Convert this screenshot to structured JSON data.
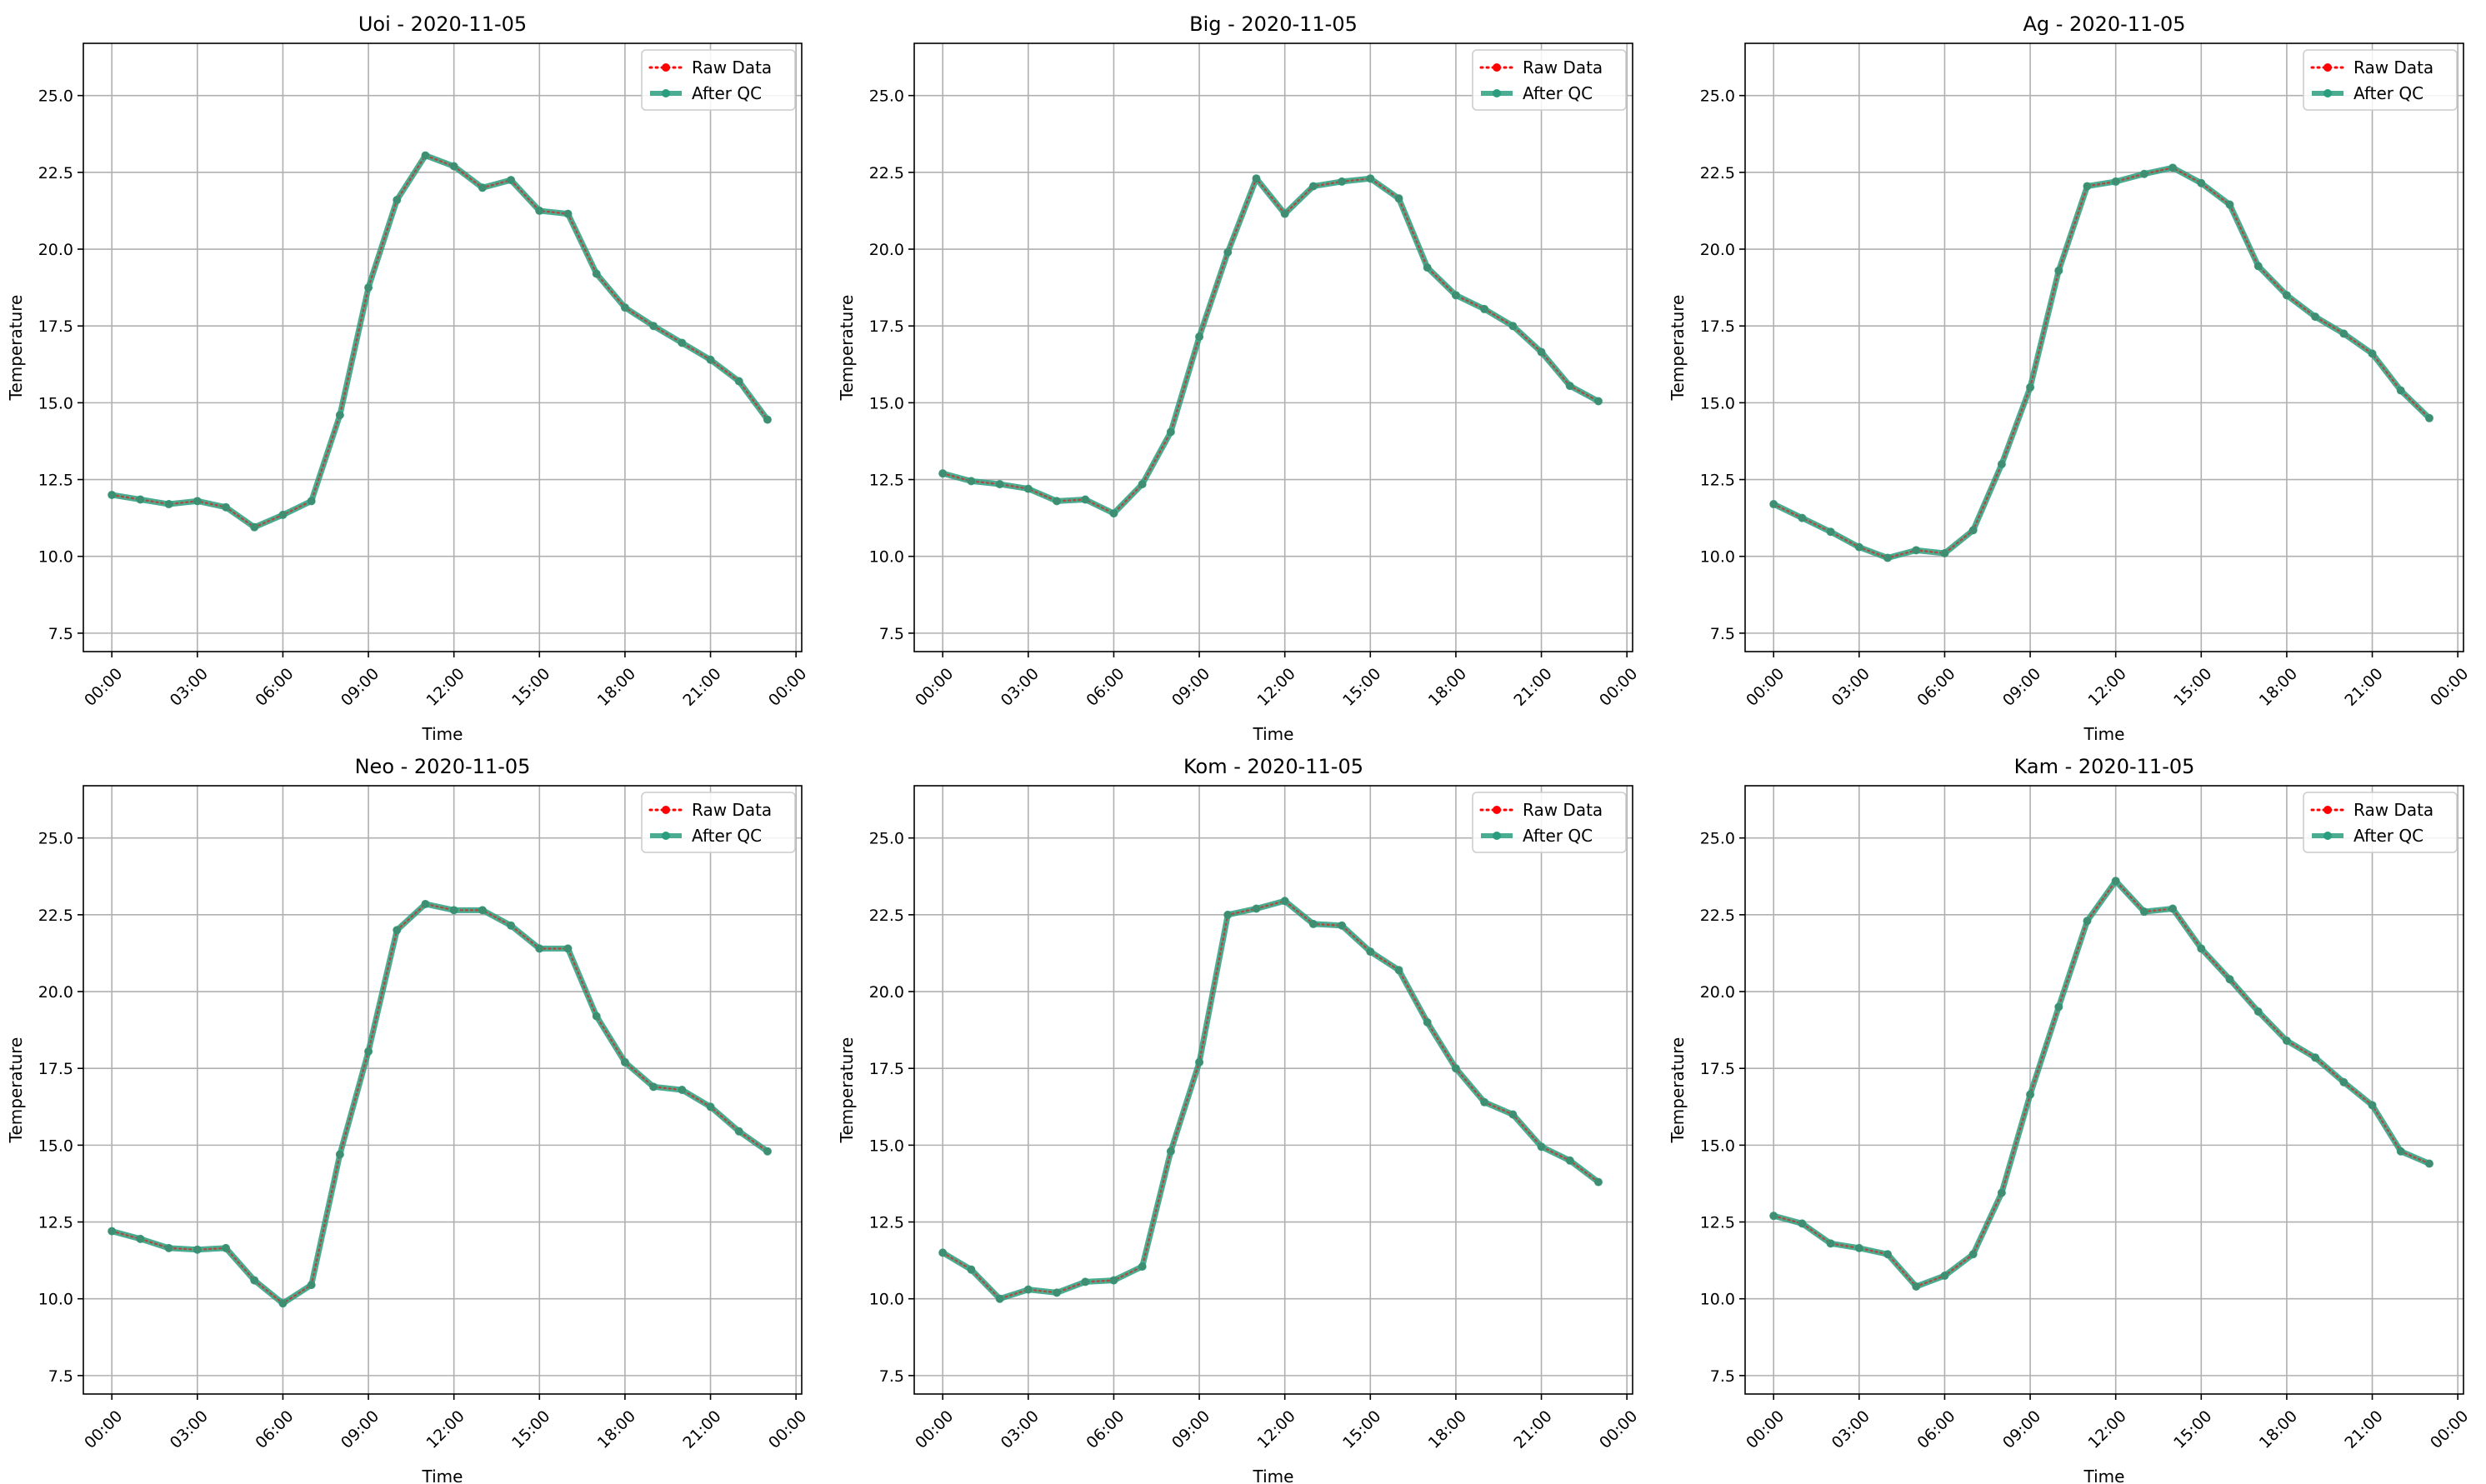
{
  "figure": {
    "background": "#ffffff",
    "grid_color": "#b0b0b0",
    "raw_color": "#ff0000",
    "qc_color": "#2a9d7e"
  },
  "chart_data": [
    {
      "type": "line",
      "title": "Uoi - 2020-11-05",
      "xlabel": "Time",
      "ylabel": "Temperature",
      "ylim": [
        6.9,
        26.7
      ],
      "yticks": [
        "7.5",
        "10.0",
        "12.5",
        "15.0",
        "17.5",
        "20.0",
        "22.5",
        "25.0"
      ],
      "xticks": [
        "00:00",
        "03:00",
        "06:00",
        "09:00",
        "12:00",
        "15:00",
        "18:00",
        "21:00",
        "00:00"
      ],
      "xlim_hours": [
        -1.0,
        24.2
      ],
      "grid": true,
      "legend_position": "top-right",
      "x": [
        "00:00",
        "01:00",
        "02:00",
        "03:00",
        "04:00",
        "05:00",
        "06:00",
        "07:00",
        "08:00",
        "09:00",
        "10:00",
        "11:00",
        "12:00",
        "13:00",
        "14:00",
        "15:00",
        "16:00",
        "17:00",
        "18:00",
        "19:00",
        "20:00",
        "21:00",
        "22:00",
        "23:00"
      ],
      "series": [
        {
          "name": "Raw Data",
          "values": [
            12.0,
            11.85,
            11.7,
            11.8,
            11.6,
            10.95,
            11.35,
            11.8,
            14.6,
            18.75,
            21.6,
            23.05,
            22.7,
            22.0,
            22.25,
            21.25,
            21.15,
            19.2,
            18.1,
            17.5,
            16.95,
            16.4,
            15.7,
            14.45
          ]
        },
        {
          "name": "After QC",
          "values": [
            12.0,
            11.85,
            11.7,
            11.8,
            11.6,
            10.95,
            11.35,
            11.8,
            14.6,
            18.75,
            21.6,
            23.05,
            22.7,
            22.0,
            22.25,
            21.25,
            21.15,
            19.2,
            18.1,
            17.5,
            16.95,
            16.4,
            15.7,
            14.45
          ]
        }
      ]
    },
    {
      "type": "line",
      "title": "Big - 2020-11-05",
      "xlabel": "Time",
      "ylabel": "Temperature",
      "ylim": [
        6.9,
        26.7
      ],
      "yticks": [
        "7.5",
        "10.0",
        "12.5",
        "15.0",
        "17.5",
        "20.0",
        "22.5",
        "25.0"
      ],
      "xticks": [
        "00:00",
        "03:00",
        "06:00",
        "09:00",
        "12:00",
        "15:00",
        "18:00",
        "21:00",
        "00:00"
      ],
      "xlim_hours": [
        -1.0,
        24.2
      ],
      "grid": true,
      "legend_position": "top-right",
      "x": [
        "00:00",
        "01:00",
        "02:00",
        "03:00",
        "04:00",
        "05:00",
        "06:00",
        "07:00",
        "08:00",
        "09:00",
        "10:00",
        "11:00",
        "12:00",
        "13:00",
        "14:00",
        "15:00",
        "16:00",
        "17:00",
        "18:00",
        "19:00",
        "20:00",
        "21:00",
        "22:00",
        "23:00"
      ],
      "series": [
        {
          "name": "Raw Data",
          "values": [
            12.7,
            12.45,
            12.35,
            12.2,
            11.8,
            11.85,
            11.4,
            12.35,
            14.05,
            17.15,
            19.9,
            22.3,
            21.15,
            22.05,
            22.2,
            22.3,
            21.65,
            19.4,
            18.5,
            18.05,
            17.5,
            16.65,
            15.55,
            15.05
          ]
        },
        {
          "name": "After QC",
          "values": [
            12.7,
            12.45,
            12.35,
            12.2,
            11.8,
            11.85,
            11.4,
            12.35,
            14.05,
            17.15,
            19.9,
            22.3,
            21.15,
            22.05,
            22.2,
            22.3,
            21.65,
            19.4,
            18.5,
            18.05,
            17.5,
            16.65,
            15.55,
            15.05
          ]
        }
      ]
    },
    {
      "type": "line",
      "title": "Ag - 2020-11-05",
      "xlabel": "Time",
      "ylabel": "Temperature",
      "ylim": [
        6.9,
        26.7
      ],
      "yticks": [
        "7.5",
        "10.0",
        "12.5",
        "15.0",
        "17.5",
        "20.0",
        "22.5",
        "25.0"
      ],
      "xticks": [
        "00:00",
        "03:00",
        "06:00",
        "09:00",
        "12:00",
        "15:00",
        "18:00",
        "21:00",
        "00:00"
      ],
      "xlim_hours": [
        -1.0,
        24.2
      ],
      "grid": true,
      "legend_position": "top-right",
      "x": [
        "00:00",
        "01:00",
        "02:00",
        "03:00",
        "04:00",
        "05:00",
        "06:00",
        "07:00",
        "08:00",
        "09:00",
        "10:00",
        "11:00",
        "12:00",
        "13:00",
        "14:00",
        "15:00",
        "16:00",
        "17:00",
        "18:00",
        "19:00",
        "20:00",
        "21:00",
        "22:00",
        "23:00"
      ],
      "series": [
        {
          "name": "Raw Data",
          "values": [
            11.7,
            11.25,
            10.8,
            10.3,
            9.95,
            10.2,
            10.1,
            10.85,
            13.0,
            15.5,
            19.3,
            22.05,
            22.2,
            22.45,
            22.65,
            22.15,
            21.45,
            19.45,
            18.5,
            17.8,
            17.25,
            16.6,
            15.4,
            14.5
          ]
        },
        {
          "name": "After QC",
          "values": [
            11.7,
            11.25,
            10.8,
            10.3,
            9.95,
            10.2,
            10.1,
            10.85,
            13.0,
            15.5,
            19.3,
            22.05,
            22.2,
            22.45,
            22.65,
            22.15,
            21.45,
            19.45,
            18.5,
            17.8,
            17.25,
            16.6,
            15.4,
            14.5
          ]
        }
      ]
    },
    {
      "type": "line",
      "title": "Neo - 2020-11-05",
      "xlabel": "Time",
      "ylabel": "Temperature",
      "ylim": [
        6.9,
        26.7
      ],
      "yticks": [
        "7.5",
        "10.0",
        "12.5",
        "15.0",
        "17.5",
        "20.0",
        "22.5",
        "25.0"
      ],
      "xticks": [
        "00:00",
        "03:00",
        "06:00",
        "09:00",
        "12:00",
        "15:00",
        "18:00",
        "21:00",
        "00:00"
      ],
      "xlim_hours": [
        -1.0,
        24.2
      ],
      "grid": true,
      "legend_position": "top-right",
      "x": [
        "00:00",
        "01:00",
        "02:00",
        "03:00",
        "04:00",
        "05:00",
        "06:00",
        "07:00",
        "08:00",
        "09:00",
        "10:00",
        "11:00",
        "12:00",
        "13:00",
        "14:00",
        "15:00",
        "16:00",
        "17:00",
        "18:00",
        "19:00",
        "20:00",
        "21:00",
        "22:00",
        "23:00"
      ],
      "series": [
        {
          "name": "Raw Data",
          "values": [
            12.2,
            11.95,
            11.65,
            11.6,
            11.65,
            10.6,
            9.85,
            10.45,
            14.7,
            18.05,
            22.0,
            22.85,
            22.65,
            22.65,
            22.15,
            21.4,
            21.4,
            19.2,
            17.7,
            16.9,
            16.8,
            16.25,
            15.45,
            14.8
          ]
        },
        {
          "name": "After QC",
          "values": [
            12.2,
            11.95,
            11.65,
            11.6,
            11.65,
            10.6,
            9.85,
            10.45,
            14.7,
            18.05,
            22.0,
            22.85,
            22.65,
            22.65,
            22.15,
            21.4,
            21.4,
            19.2,
            17.7,
            16.9,
            16.8,
            16.25,
            15.45,
            14.8
          ]
        }
      ]
    },
    {
      "type": "line",
      "title": "Kom - 2020-11-05",
      "xlabel": "Time",
      "ylabel": "Temperature",
      "ylim": [
        6.9,
        26.7
      ],
      "yticks": [
        "7.5",
        "10.0",
        "12.5",
        "15.0",
        "17.5",
        "20.0",
        "22.5",
        "25.0"
      ],
      "xticks": [
        "00:00",
        "03:00",
        "06:00",
        "09:00",
        "12:00",
        "15:00",
        "18:00",
        "21:00",
        "00:00"
      ],
      "xlim_hours": [
        -1.0,
        24.2
      ],
      "grid": true,
      "legend_position": "top-right",
      "x": [
        "00:00",
        "01:00",
        "02:00",
        "03:00",
        "04:00",
        "05:00",
        "06:00",
        "07:00",
        "08:00",
        "09:00",
        "10:00",
        "11:00",
        "12:00",
        "13:00",
        "14:00",
        "15:00",
        "16:00",
        "17:00",
        "18:00",
        "19:00",
        "20:00",
        "21:00",
        "22:00",
        "23:00"
      ],
      "series": [
        {
          "name": "Raw Data",
          "values": [
            11.5,
            10.95,
            10.0,
            10.3,
            10.2,
            10.55,
            10.6,
            11.05,
            14.8,
            17.7,
            22.5,
            22.7,
            22.95,
            22.2,
            22.15,
            21.3,
            20.7,
            19.0,
            17.5,
            16.4,
            16.0,
            14.95,
            14.5,
            13.8
          ]
        },
        {
          "name": "After QC",
          "values": [
            11.5,
            10.95,
            10.0,
            10.3,
            10.2,
            10.55,
            10.6,
            11.05,
            14.8,
            17.7,
            22.5,
            22.7,
            22.95,
            22.2,
            22.15,
            21.3,
            20.7,
            19.0,
            17.5,
            16.4,
            16.0,
            14.95,
            14.5,
            13.8
          ]
        }
      ]
    },
    {
      "type": "line",
      "title": "Kam - 2020-11-05",
      "xlabel": "Time",
      "ylabel": "Temperature",
      "ylim": [
        6.9,
        26.7
      ],
      "yticks": [
        "7.5",
        "10.0",
        "12.5",
        "15.0",
        "17.5",
        "20.0",
        "22.5",
        "25.0"
      ],
      "xticks": [
        "00:00",
        "03:00",
        "06:00",
        "09:00",
        "12:00",
        "15:00",
        "18:00",
        "21:00",
        "00:00"
      ],
      "xlim_hours": [
        -1.0,
        24.2
      ],
      "grid": true,
      "legend_position": "top-right",
      "x": [
        "00:00",
        "01:00",
        "02:00",
        "03:00",
        "04:00",
        "05:00",
        "06:00",
        "07:00",
        "08:00",
        "09:00",
        "10:00",
        "11:00",
        "12:00",
        "13:00",
        "14:00",
        "15:00",
        "16:00",
        "17:00",
        "18:00",
        "19:00",
        "20:00",
        "21:00",
        "22:00",
        "23:00"
      ],
      "series": [
        {
          "name": "Raw Data",
          "values": [
            12.7,
            12.45,
            11.8,
            11.65,
            11.45,
            10.4,
            10.75,
            11.45,
            13.45,
            16.65,
            19.5,
            22.3,
            23.6,
            22.6,
            22.7,
            21.4,
            20.4,
            19.35,
            18.4,
            17.85,
            17.05,
            16.3,
            14.8,
            14.4
          ]
        },
        {
          "name": "After QC",
          "values": [
            12.7,
            12.45,
            11.8,
            11.65,
            11.45,
            10.4,
            10.75,
            11.45,
            13.45,
            16.65,
            19.5,
            22.3,
            23.6,
            22.6,
            22.7,
            21.4,
            20.4,
            19.35,
            18.4,
            17.85,
            17.05,
            16.3,
            14.8,
            14.4
          ]
        }
      ]
    }
  ]
}
